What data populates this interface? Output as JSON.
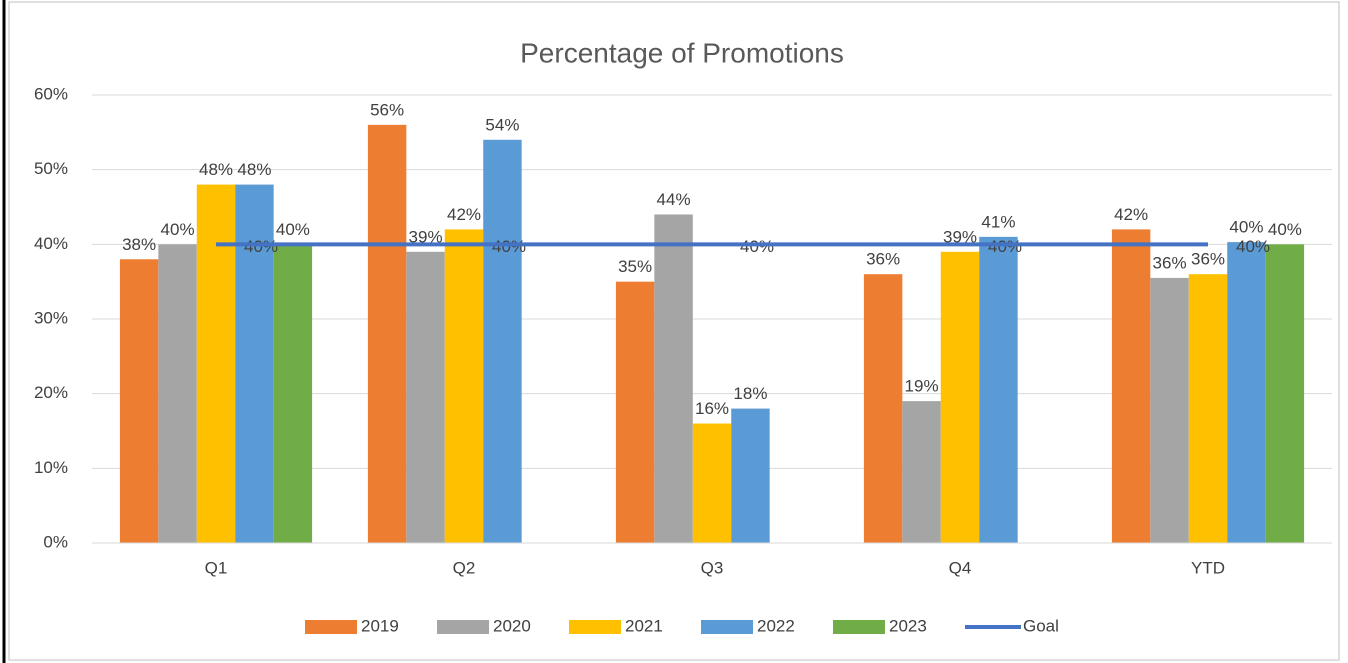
{
  "chart_data": {
    "type": "bar",
    "title": "Percentage of Promotions",
    "categories": [
      "Q1",
      "Q2",
      "Q3",
      "Q4",
      "YTD"
    ],
    "series": [
      {
        "name": "2019",
        "type": "bar",
        "color": "#ED7D31",
        "values": [
          38,
          56,
          35,
          36,
          42
        ],
        "value_labels": [
          "38%",
          "56%",
          "35%",
          "36%",
          "42%"
        ]
      },
      {
        "name": "2020",
        "type": "bar",
        "color": "#A5A5A5",
        "values": [
          40,
          39,
          44,
          19,
          35.5
        ],
        "value_labels": [
          "40%",
          "39%",
          "44%",
          "19%",
          "36%"
        ]
      },
      {
        "name": "2021",
        "type": "bar",
        "color": "#FFC000",
        "values": [
          48,
          42,
          16,
          39,
          36
        ],
        "value_labels": [
          "48%",
          "42%",
          "16%",
          "39%",
          "36%"
        ]
      },
      {
        "name": "2022",
        "type": "bar",
        "color": "#5B9BD5",
        "values": [
          48,
          54,
          18,
          41,
          40.3
        ],
        "value_labels": [
          "48%",
          "54%",
          "18%",
          "41%",
          "40%"
        ]
      },
      {
        "name": "2023",
        "type": "bar",
        "color": "#70AD47",
        "values": [
          40,
          null,
          null,
          null,
          40
        ],
        "value_labels": [
          "40%",
          null,
          null,
          null,
          "40%"
        ]
      },
      {
        "name": "Goal",
        "type": "line",
        "color": "#4472C4",
        "values": [
          40,
          40,
          40,
          40,
          40
        ],
        "value_labels": [
          "40%",
          "40%",
          "40%",
          "40%",
          "40%"
        ]
      }
    ],
    "ylim": [
      0,
      60
    ],
    "yticks": [
      {
        "value": 0,
        "label": "0%"
      },
      {
        "value": 10,
        "label": "10%"
      },
      {
        "value": 20,
        "label": "20%"
      },
      {
        "value": 30,
        "label": "30%"
      },
      {
        "value": 40,
        "label": "40%"
      },
      {
        "value": 50,
        "label": "50%"
      },
      {
        "value": 60,
        "label": "60%"
      }
    ],
    "grid": true,
    "legend": "bottom"
  }
}
